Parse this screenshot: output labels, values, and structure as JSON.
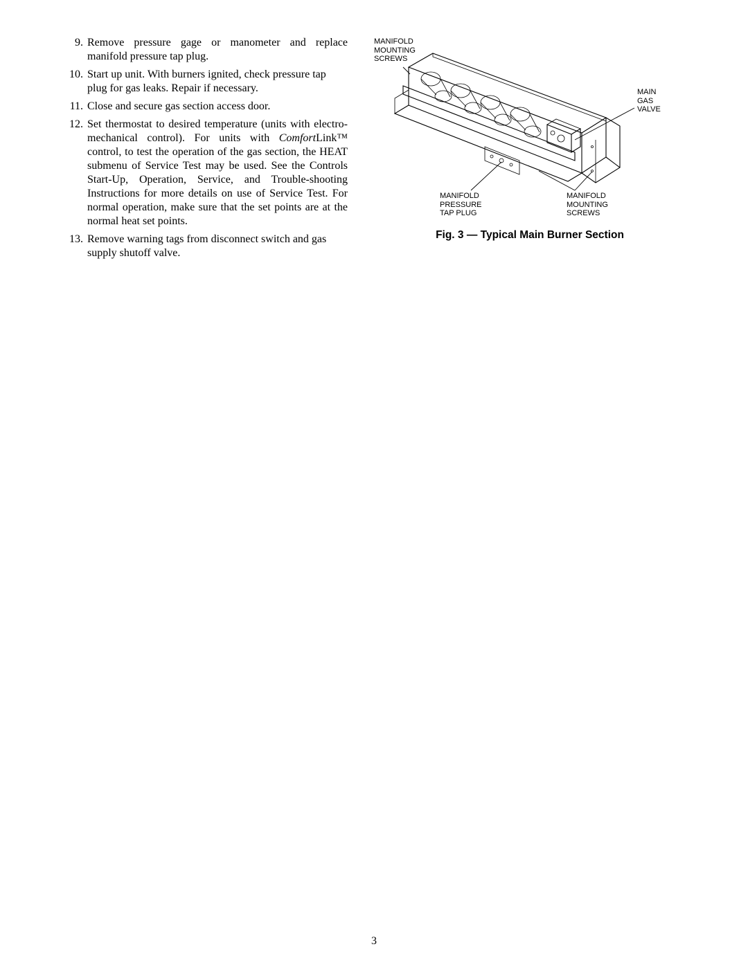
{
  "list": {
    "items": [
      {
        "num": "9.",
        "text": "Remove pressure gage or manometer and replace manifold pressure tap plug.",
        "justify": true
      },
      {
        "num": "10.",
        "text": "Start up unit. With burners ignited, check pressure tap plug for gas leaks. Repair if necessary.",
        "justify": false
      },
      {
        "num": "11.",
        "text": "Close and secure gas section access door.",
        "justify": false
      },
      {
        "num": "12.",
        "pre": "Set thermostat to desired temperature (units with electro-mechanical control). For units with ",
        "italic": "Comfort",
        "post": "Link™ control, to test the operation of the gas section, the HEAT submenu of Service Test may be used. See the Controls Start-Up, Operation, Service, and Trouble-shooting Instructions for more details on use of Service Test. For normal operation, make sure that the set points are at the normal heat set points.",
        "justify": true
      },
      {
        "num": "13.",
        "text": "Remove warning tags from disconnect switch and gas supply shutoff valve.",
        "justify": false
      }
    ]
  },
  "figure": {
    "caption": "Fig. 3 — Typical Main Burner Section",
    "labels": {
      "top_left": "MANIFOLD\nMOUNTING\nSCREWS",
      "right": "MAIN\nGAS\nVALVE",
      "bot_left": "MANIFOLD\nPRESSURE\nTAP PLUG",
      "bot_right": "MANIFOLD\nMOUNTING\nSCREWS"
    }
  },
  "page_number": "3"
}
